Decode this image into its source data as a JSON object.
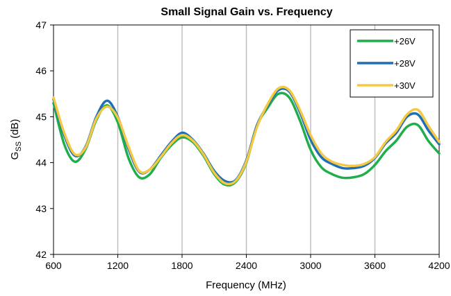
{
  "chart_data": {
    "type": "line",
    "title": "Small Signal Gain vs. Frequency",
    "xlabel": "Frequency (MHz)",
    "ylabel_main": "G",
    "ylabel_sub": "SS",
    "ylabel_unit": " (dB)",
    "xlim": [
      600,
      4200
    ],
    "ylim": [
      42,
      47
    ],
    "xticks": [
      600,
      1200,
      1800,
      2400,
      3000,
      3600,
      4200
    ],
    "yticks": [
      42,
      43,
      44,
      45,
      46,
      47
    ],
    "grid": "vertical",
    "legend_position": "top-right",
    "series": [
      {
        "name": "+26V",
        "color": "#1FAE4B",
        "x": [
          600,
          700,
          800,
          900,
          1000,
          1100,
          1200,
          1300,
          1400,
          1500,
          1600,
          1700,
          1800,
          1900,
          2000,
          2100,
          2200,
          2300,
          2400,
          2500,
          2600,
          2700,
          2800,
          2900,
          3000,
          3100,
          3200,
          3300,
          3400,
          3500,
          3600,
          3700,
          3800,
          3900,
          4000,
          4100,
          4200
        ],
        "y": [
          45.3,
          44.4,
          44.02,
          44.3,
          44.93,
          45.25,
          44.88,
          44.1,
          43.68,
          43.75,
          44.1,
          44.38,
          44.55,
          44.45,
          44.15,
          43.75,
          43.52,
          43.58,
          44.0,
          44.8,
          45.2,
          45.5,
          45.42,
          44.92,
          44.28,
          43.9,
          43.75,
          43.67,
          43.68,
          43.75,
          43.95,
          44.25,
          44.48,
          44.78,
          44.82,
          44.47,
          44.2
        ]
      },
      {
        "name": "+28V",
        "color": "#1F6FB7",
        "x": [
          600,
          700,
          800,
          900,
          1000,
          1100,
          1200,
          1300,
          1400,
          1500,
          1600,
          1700,
          1800,
          1900,
          2000,
          2100,
          2200,
          2300,
          2400,
          2500,
          2600,
          2700,
          2800,
          2900,
          3000,
          3100,
          3200,
          3300,
          3400,
          3500,
          3600,
          3700,
          3800,
          3900,
          4000,
          4100,
          4200
        ],
        "y": [
          45.38,
          44.6,
          44.15,
          44.35,
          45.0,
          45.35,
          45.0,
          44.3,
          43.8,
          43.85,
          44.15,
          44.45,
          44.65,
          44.5,
          44.2,
          43.82,
          43.6,
          43.62,
          44.05,
          44.82,
          45.25,
          45.58,
          45.55,
          45.1,
          44.5,
          44.12,
          43.97,
          43.88,
          43.88,
          43.93,
          44.1,
          44.42,
          44.65,
          45.0,
          45.05,
          44.7,
          44.4
        ]
      },
      {
        "name": "+30V",
        "color": "#F4C842",
        "x": [
          600,
          700,
          800,
          900,
          1000,
          1100,
          1200,
          1300,
          1400,
          1500,
          1600,
          1700,
          1800,
          1900,
          2000,
          2100,
          2200,
          2300,
          2400,
          2500,
          2600,
          2700,
          2800,
          2900,
          3000,
          3100,
          3200,
          3300,
          3400,
          3500,
          3600,
          3700,
          3800,
          3900,
          4000,
          4100,
          4200
        ],
        "y": [
          45.42,
          44.65,
          44.18,
          44.33,
          44.96,
          45.22,
          44.98,
          44.35,
          43.82,
          43.85,
          44.12,
          44.42,
          44.6,
          44.48,
          44.18,
          43.78,
          43.55,
          43.6,
          44.02,
          44.78,
          45.28,
          45.62,
          45.58,
          45.15,
          44.6,
          44.2,
          44.02,
          43.95,
          43.93,
          43.97,
          44.12,
          44.45,
          44.7,
          45.05,
          45.15,
          44.8,
          44.45
        ]
      }
    ]
  }
}
